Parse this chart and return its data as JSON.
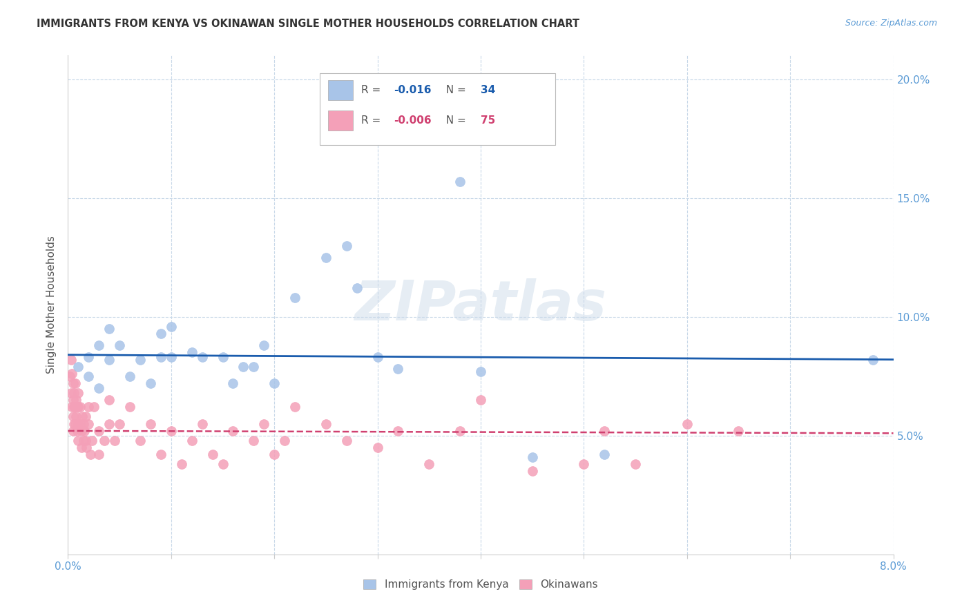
{
  "title": "IMMIGRANTS FROM KENYA VS OKINAWAN SINGLE MOTHER HOUSEHOLDS CORRELATION CHART",
  "source": "Source: ZipAtlas.com",
  "ylabel_label": "Single Mother Households",
  "xlim": [
    0.0,
    0.08
  ],
  "ylim": [
    0.0,
    0.21
  ],
  "xticks": [
    0.0,
    0.01,
    0.02,
    0.03,
    0.04,
    0.05,
    0.06,
    0.07,
    0.08
  ],
  "yticks": [
    0.05,
    0.1,
    0.15,
    0.2
  ],
  "ytick_labels": [
    "5.0%",
    "10.0%",
    "15.0%",
    "20.0%"
  ],
  "xtick_labels": [
    "0.0%",
    "",
    "",
    "",
    "",
    "",
    "",
    "",
    "8.0%"
  ],
  "blue_color": "#a8c4e8",
  "pink_color": "#f4a0b8",
  "blue_line_color": "#1a5cad",
  "pink_line_color": "#d04070",
  "grid_color": "#c8d8e8",
  "watermark": "ZIPatlas",
  "legend_blue_R_val": "-0.016",
  "legend_blue_N_val": "34",
  "legend_pink_R_val": "-0.006",
  "legend_pink_N_val": "75",
  "blue_scatter_x": [
    0.001,
    0.002,
    0.002,
    0.003,
    0.003,
    0.004,
    0.004,
    0.005,
    0.006,
    0.007,
    0.008,
    0.009,
    0.009,
    0.01,
    0.01,
    0.012,
    0.013,
    0.015,
    0.016,
    0.017,
    0.018,
    0.019,
    0.02,
    0.022,
    0.025,
    0.027,
    0.028,
    0.03,
    0.032,
    0.038,
    0.04,
    0.045,
    0.052,
    0.078
  ],
  "blue_scatter_y": [
    0.079,
    0.083,
    0.075,
    0.088,
    0.07,
    0.095,
    0.082,
    0.088,
    0.075,
    0.082,
    0.072,
    0.093,
    0.083,
    0.096,
    0.083,
    0.085,
    0.083,
    0.083,
    0.072,
    0.079,
    0.079,
    0.088,
    0.072,
    0.108,
    0.125,
    0.13,
    0.112,
    0.083,
    0.078,
    0.157,
    0.077,
    0.041,
    0.042,
    0.082
  ],
  "pink_scatter_x": [
    0.0002,
    0.0003,
    0.0003,
    0.0004,
    0.0004,
    0.0005,
    0.0005,
    0.0005,
    0.0005,
    0.0006,
    0.0006,
    0.0006,
    0.0007,
    0.0007,
    0.0007,
    0.0008,
    0.0008,
    0.0009,
    0.0009,
    0.001,
    0.001,
    0.001,
    0.001,
    0.0012,
    0.0012,
    0.0013,
    0.0013,
    0.0014,
    0.0015,
    0.0015,
    0.0016,
    0.0017,
    0.0017,
    0.0018,
    0.002,
    0.002,
    0.0022,
    0.0023,
    0.0025,
    0.003,
    0.003,
    0.0035,
    0.004,
    0.004,
    0.0045,
    0.005,
    0.006,
    0.007,
    0.008,
    0.009,
    0.01,
    0.011,
    0.012,
    0.013,
    0.014,
    0.015,
    0.016,
    0.018,
    0.019,
    0.02,
    0.021,
    0.022,
    0.025,
    0.027,
    0.03,
    0.032,
    0.035,
    0.038,
    0.04,
    0.045,
    0.05,
    0.052,
    0.055,
    0.06,
    0.065
  ],
  "pink_scatter_y": [
    0.075,
    0.082,
    0.068,
    0.076,
    0.062,
    0.072,
    0.065,
    0.058,
    0.052,
    0.068,
    0.062,
    0.055,
    0.072,
    0.062,
    0.055,
    0.065,
    0.058,
    0.062,
    0.052,
    0.068,
    0.062,
    0.055,
    0.048,
    0.062,
    0.055,
    0.052,
    0.045,
    0.058,
    0.055,
    0.048,
    0.052,
    0.058,
    0.048,
    0.045,
    0.062,
    0.055,
    0.042,
    0.048,
    0.062,
    0.052,
    0.042,
    0.048,
    0.055,
    0.065,
    0.048,
    0.055,
    0.062,
    0.048,
    0.055,
    0.042,
    0.052,
    0.038,
    0.048,
    0.055,
    0.042,
    0.038,
    0.052,
    0.048,
    0.055,
    0.042,
    0.048,
    0.062,
    0.055,
    0.048,
    0.045,
    0.052,
    0.038,
    0.052,
    0.065,
    0.035,
    0.038,
    0.052,
    0.038,
    0.055,
    0.052
  ],
  "blue_trend_x": [
    0.0,
    0.08
  ],
  "blue_trend_y": [
    0.084,
    0.082
  ],
  "pink_trend_x": [
    0.0,
    0.08
  ],
  "pink_trend_y": [
    0.052,
    0.051
  ]
}
